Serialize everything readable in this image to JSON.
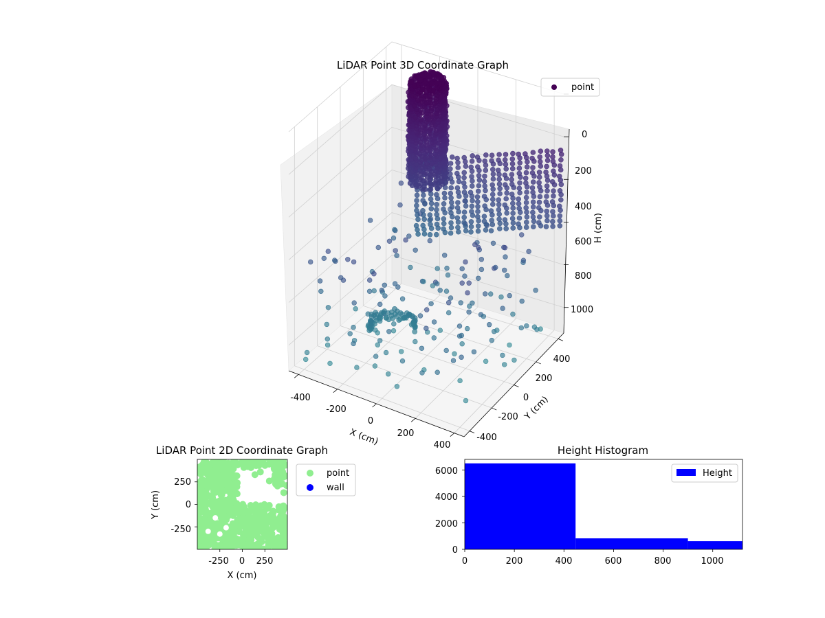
{
  "chart_data": [
    {
      "type": "scatter",
      "title": "LiDAR Point 3D Coordinate Graph",
      "xlabel": "X (cm)",
      "ylabel": "Y (cm)",
      "zlabel": "H (cm)",
      "x_ticks": [
        "-400",
        "-200",
        "0",
        "200",
        "400"
      ],
      "y_ticks": [
        "-400",
        "-200",
        "0",
        "200",
        "400"
      ],
      "z_ticks": [
        "0",
        "200",
        "400",
        "600",
        "800",
        "1000"
      ],
      "xlim": [
        -450,
        450
      ],
      "ylim": [
        -450,
        450
      ],
      "zlim": [
        1120,
        0
      ],
      "z_inverted": true,
      "legend": [
        "point"
      ],
      "legend_position": "top-right",
      "grid": true,
      "colormap": "viridis",
      "series": [
        {
          "name": "point",
          "color": "#440154",
          "structures": [
            {
              "kind": "cylinder",
              "cx": -150,
              "cy": 260,
              "r": 80,
              "z_range": [
                20,
                470
              ]
            },
            {
              "kind": "walls",
              "x_range": [
                -300,
                450
              ],
              "y": 420,
              "z_range": [
                500,
                850
              ]
            },
            {
              "kind": "arc",
              "cx": -150,
              "cy": -50,
              "r": 100,
              "z": 1000
            }
          ]
        }
      ]
    },
    {
      "type": "scatter",
      "title": "LiDAR Point 2D Coordinate Graph",
      "xlabel": "X (cm)",
      "ylabel": "Y (cm)",
      "x_ticks": [
        "-250",
        "0",
        "250"
      ],
      "y_ticks": [
        "250",
        "0",
        "-250"
      ],
      "xlim": [
        -500,
        500
      ],
      "ylim": [
        -500,
        500
      ],
      "legend": [
        "point",
        "wall"
      ],
      "legend_position": "outside-right",
      "series": [
        {
          "name": "point",
          "color": "#90ee90"
        },
        {
          "name": "wall",
          "color": "#0000ff"
        }
      ]
    },
    {
      "type": "bar",
      "title": "Height Histogram",
      "x_ticks": [
        "0",
        "200",
        "400",
        "600",
        "800",
        "1000"
      ],
      "y_ticks": [
        "0",
        "2000",
        "4000",
        "6000"
      ],
      "xlim": [
        0,
        1120
      ],
      "ylim": [
        0,
        6800
      ],
      "legend": [
        "Height"
      ],
      "legend_position": "top-right",
      "color": "#0000ff",
      "bins": [
        {
          "start": 0,
          "end": 447,
          "count": 6500
        },
        {
          "start": 447,
          "end": 900,
          "count": 830
        },
        {
          "start": 900,
          "end": 1120,
          "count": 620
        }
      ]
    }
  ]
}
